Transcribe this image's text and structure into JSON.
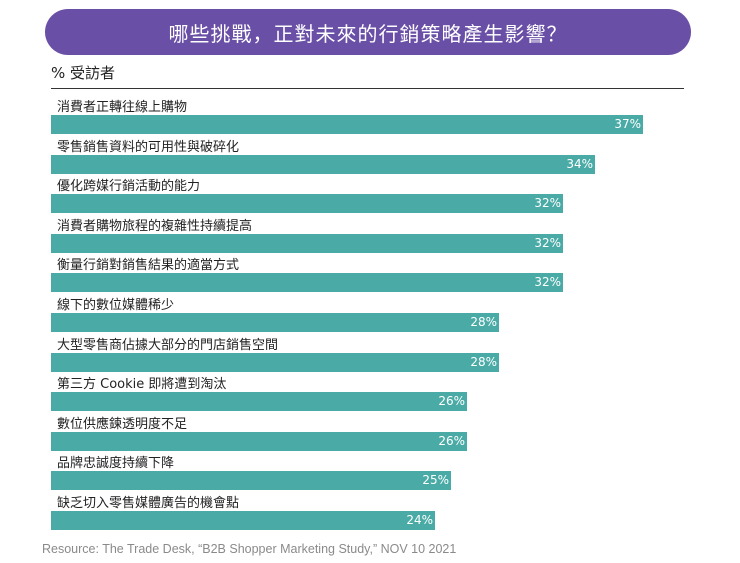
{
  "title": "哪些挑戰，正對未來的行銷策略產生影響？",
  "unit_label": "% 受訪者",
  "source": "Resource: The Trade Desk, “B2B Shopper Marketing Study,” NOV 10 2021",
  "colors": {
    "title_bg": "#6a4fa6",
    "bar": "#4aaba6"
  },
  "chart_data": {
    "type": "bar",
    "orientation": "horizontal",
    "categories": [
      "消費者正轉往線上購物",
      "零售銷售資料的可用性與破碎化",
      "優化跨媒行銷活動的能力",
      "消費者購物旅程的複雜性持續提高",
      "衡量行銷對銷售結果的適當方式",
      "線下的數位媒體稀少",
      "大型零售商佔據大部分的門店銷售空間",
      "第三方 Cookie 即將遭到淘汰",
      "數位供應鍊透明度不足",
      "品牌忠誠度持續下降",
      "缺乏切入零售媒體廣告的機會點"
    ],
    "values": [
      37,
      34,
      32,
      32,
      32,
      28,
      28,
      26,
      26,
      25,
      24
    ],
    "value_labels": [
      "37%",
      "34%",
      "32%",
      "32%",
      "32%",
      "28%",
      "28%",
      "26%",
      "26%",
      "25%",
      "24%"
    ],
    "title": "哪些挑戰，正對未來的行銷策略產生影響？",
    "ylabel": "% 受訪者"
  }
}
